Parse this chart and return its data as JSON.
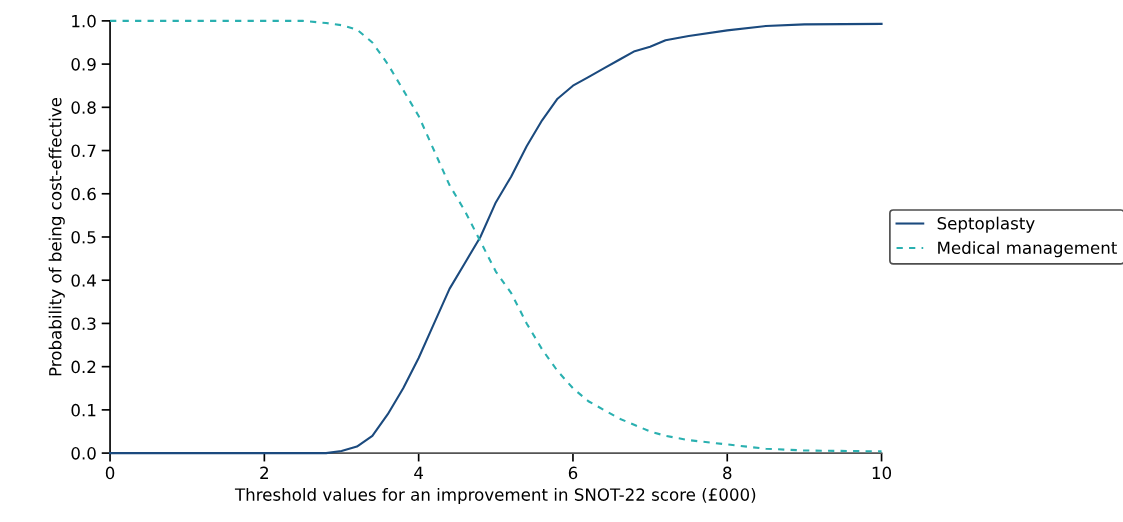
{
  "chart_data": {
    "type": "line",
    "xlabel": "Threshold values for an improvement in SNOT-22 score (£000)",
    "ylabel": "Probability of being cost-effective",
    "xlim": [
      0,
      10
    ],
    "xticks": [
      0,
      2,
      4,
      6,
      8,
      10
    ],
    "ylim": [
      0,
      1
    ],
    "yticks": [
      {
        "value": 0,
        "label": "0.0"
      },
      0.1,
      0.2,
      0.3,
      0.4,
      0.5,
      0.6,
      0.7,
      0.8,
      0.9,
      {
        "value": 1,
        "label": "1.0"
      }
    ],
    "grid": false,
    "legend": "right",
    "marker": "none",
    "series": [
      {
        "name": "Septoplasty",
        "color": "#1b4a7e",
        "line_style": "solid",
        "x": [
          0,
          2.5,
          2.8,
          3.0,
          3.2,
          3.4,
          3.6,
          3.8,
          4.0,
          4.2,
          4.4,
          4.6,
          4.8,
          5.0,
          5.2,
          5.4,
          5.6,
          5.8,
          6.0,
          6.2,
          6.4,
          6.6,
          6.8,
          7.0,
          7.2,
          7.5,
          8.0,
          8.5,
          9.0,
          10
        ],
        "values": [
          0,
          0,
          0,
          0.005,
          0.015,
          0.04,
          0.09,
          0.15,
          0.22,
          0.3,
          0.38,
          0.44,
          0.5,
          0.58,
          0.64,
          0.71,
          0.77,
          0.82,
          0.85,
          0.87,
          0.89,
          0.91,
          0.93,
          0.94,
          0.955,
          0.965,
          0.978,
          0.988,
          0.992,
          0.993
        ]
      },
      {
        "name": "Medical management",
        "color": "#2ab0b0",
        "line_style": "dashed",
        "x": [
          0,
          2.5,
          2.8,
          3.0,
          3.2,
          3.4,
          3.6,
          3.8,
          4.0,
          4.2,
          4.4,
          4.6,
          4.8,
          5.0,
          5.2,
          5.4,
          5.6,
          5.8,
          6.0,
          6.2,
          6.4,
          6.6,
          6.8,
          7.0,
          7.2,
          7.5,
          8.0,
          8.5,
          9.0,
          10
        ],
        "values": [
          1,
          1,
          0.995,
          0.99,
          0.98,
          0.95,
          0.9,
          0.84,
          0.78,
          0.7,
          0.62,
          0.56,
          0.49,
          0.42,
          0.37,
          0.3,
          0.24,
          0.19,
          0.15,
          0.12,
          0.1,
          0.08,
          0.065,
          0.05,
          0.04,
          0.03,
          0.02,
          0.01,
          0.006,
          0.004
        ]
      }
    ]
  }
}
